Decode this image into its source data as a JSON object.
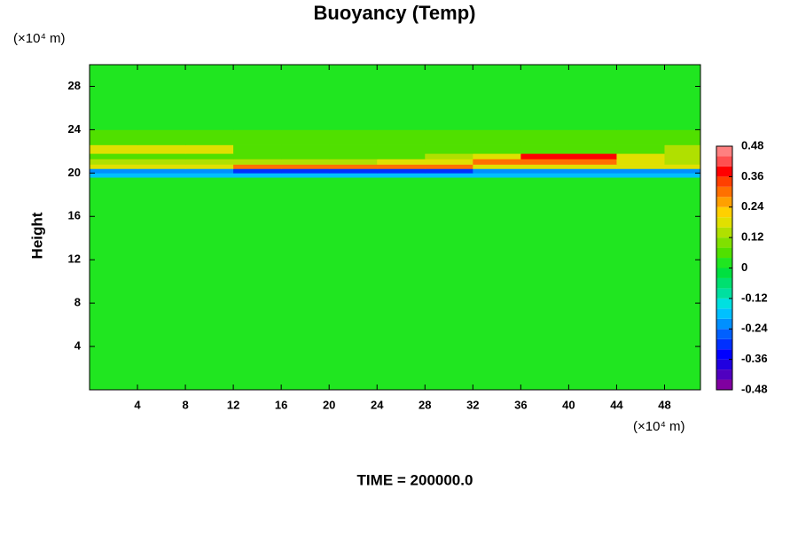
{
  "chart_data": {
    "type": "heatmap",
    "title": "Buoyancy (Temp)",
    "ylabel": "Height",
    "xunit": "(×10⁴ m)",
    "yunit": "(×10⁴ m)",
    "annotation": "TIME = 200000.0",
    "xlim": [
      0,
      51
    ],
    "ylim": [
      0,
      30
    ],
    "xticks": [
      4,
      8,
      12,
      16,
      20,
      24,
      28,
      32,
      36,
      40,
      44,
      48
    ],
    "yticks": [
      4,
      8,
      12,
      16,
      20,
      24,
      28
    ],
    "x_edges": [
      0,
      4,
      8,
      12,
      16,
      20,
      24,
      28,
      32,
      36,
      40,
      44,
      48,
      51
    ],
    "y_edges": [
      0,
      19.6,
      20.0,
      20.4,
      20.8,
      21.3,
      21.8,
      22.6,
      24,
      30
    ],
    "z": [
      [
        0.01,
        0.01,
        0.01,
        0.01,
        0.01,
        0.01,
        0.01,
        0.01,
        0.01,
        0.01,
        0.01,
        0.01,
        0.01
      ],
      [
        -0.16,
        -0.16,
        -0.16,
        -0.16,
        -0.16,
        -0.16,
        -0.16,
        -0.16,
        -0.16,
        -0.16,
        -0.16,
        -0.16,
        -0.16
      ],
      [
        -0.2,
        -0.2,
        -0.2,
        -0.3,
        -0.3,
        -0.3,
        -0.3,
        -0.3,
        -0.2,
        -0.2,
        -0.2,
        -0.2,
        -0.2
      ],
      [
        0.2,
        0.2,
        0.2,
        0.3,
        0.3,
        0.3,
        0.3,
        0.3,
        0.2,
        0.2,
        0.2,
        0.2,
        0.2
      ],
      [
        0.12,
        0.12,
        0.12,
        0.12,
        0.12,
        0.12,
        0.16,
        0.2,
        0.3,
        0.3,
        0.3,
        0.2,
        0.12
      ],
      [
        0.08,
        0.08,
        0.08,
        0.08,
        0.08,
        0.08,
        0.08,
        0.12,
        0.2,
        0.36,
        0.36,
        0.2,
        0.12
      ],
      [
        0.2,
        0.2,
        0.2,
        0.08,
        0.08,
        0.08,
        0.08,
        0.08,
        0.08,
        0.08,
        0.08,
        0.08,
        0.12
      ],
      [
        0.04,
        0.04,
        0.04,
        0.04,
        0.04,
        0.04,
        0.04,
        0.04,
        0.04,
        0.04,
        0.04,
        0.04,
        0.04
      ],
      [
        0.01,
        0.01,
        0.01,
        0.01,
        0.01,
        0.01,
        0.01,
        0.01,
        0.01,
        0.01,
        0.01,
        0.01,
        0.01
      ]
    ],
    "clim": [
      -0.48,
      0.48
    ],
    "colorbar_ticks": [
      -0.48,
      -0.36,
      -0.24,
      -0.12,
      0,
      0.12,
      0.24,
      0.36,
      0.48
    ],
    "colormap": [
      "#8000a0",
      "#5000c0",
      "#2000e0",
      "#0000ff",
      "#0030ff",
      "#0060ff",
      "#0090ff",
      "#00c0ff",
      "#00e0e0",
      "#00e0a0",
      "#00e070",
      "#00e040",
      "#20e620",
      "#50e000",
      "#80e000",
      "#b0e000",
      "#e0e000",
      "#ffd000",
      "#ffa000",
      "#ff7000",
      "#ff4000",
      "#ff0000",
      "#ff5050",
      "#ff8080"
    ]
  }
}
